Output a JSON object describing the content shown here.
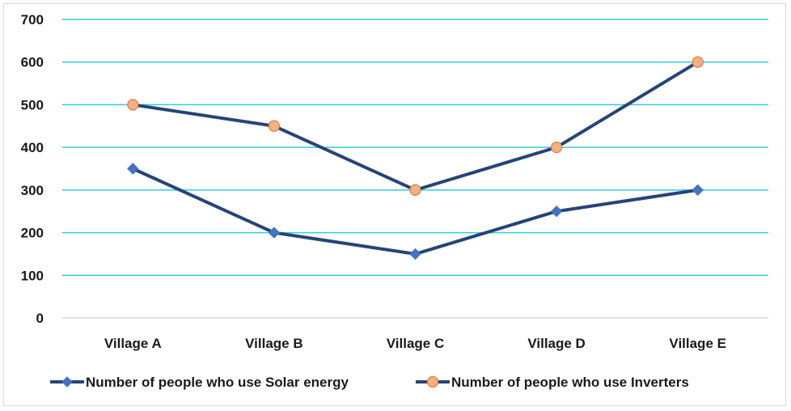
{
  "chart_data": {
    "type": "line",
    "title": "",
    "xlabel": "",
    "ylabel": "",
    "categories": [
      "Village A",
      "Village B",
      "Village C",
      "Village D",
      "Village E"
    ],
    "ylim": [
      0,
      700
    ],
    "yticks": [
      0,
      100,
      200,
      300,
      400,
      500,
      600,
      700
    ],
    "grid": true,
    "legend_position": "bottom",
    "series": [
      {
        "name": "Number of people who use Solar energy",
        "values": [
          350,
          200,
          150,
          250,
          300
        ],
        "line_color": "#264478",
        "marker": "diamond",
        "marker_color": "#4472C4"
      },
      {
        "name": "Number of people who use Inverters",
        "values": [
          500,
          450,
          300,
          400,
          600
        ],
        "line_color": "#264478",
        "marker": "circle",
        "marker_color": "#F4B183"
      }
    ],
    "colors": {
      "grid": "#33CCDD",
      "axis": "#d9d9d9"
    }
  }
}
